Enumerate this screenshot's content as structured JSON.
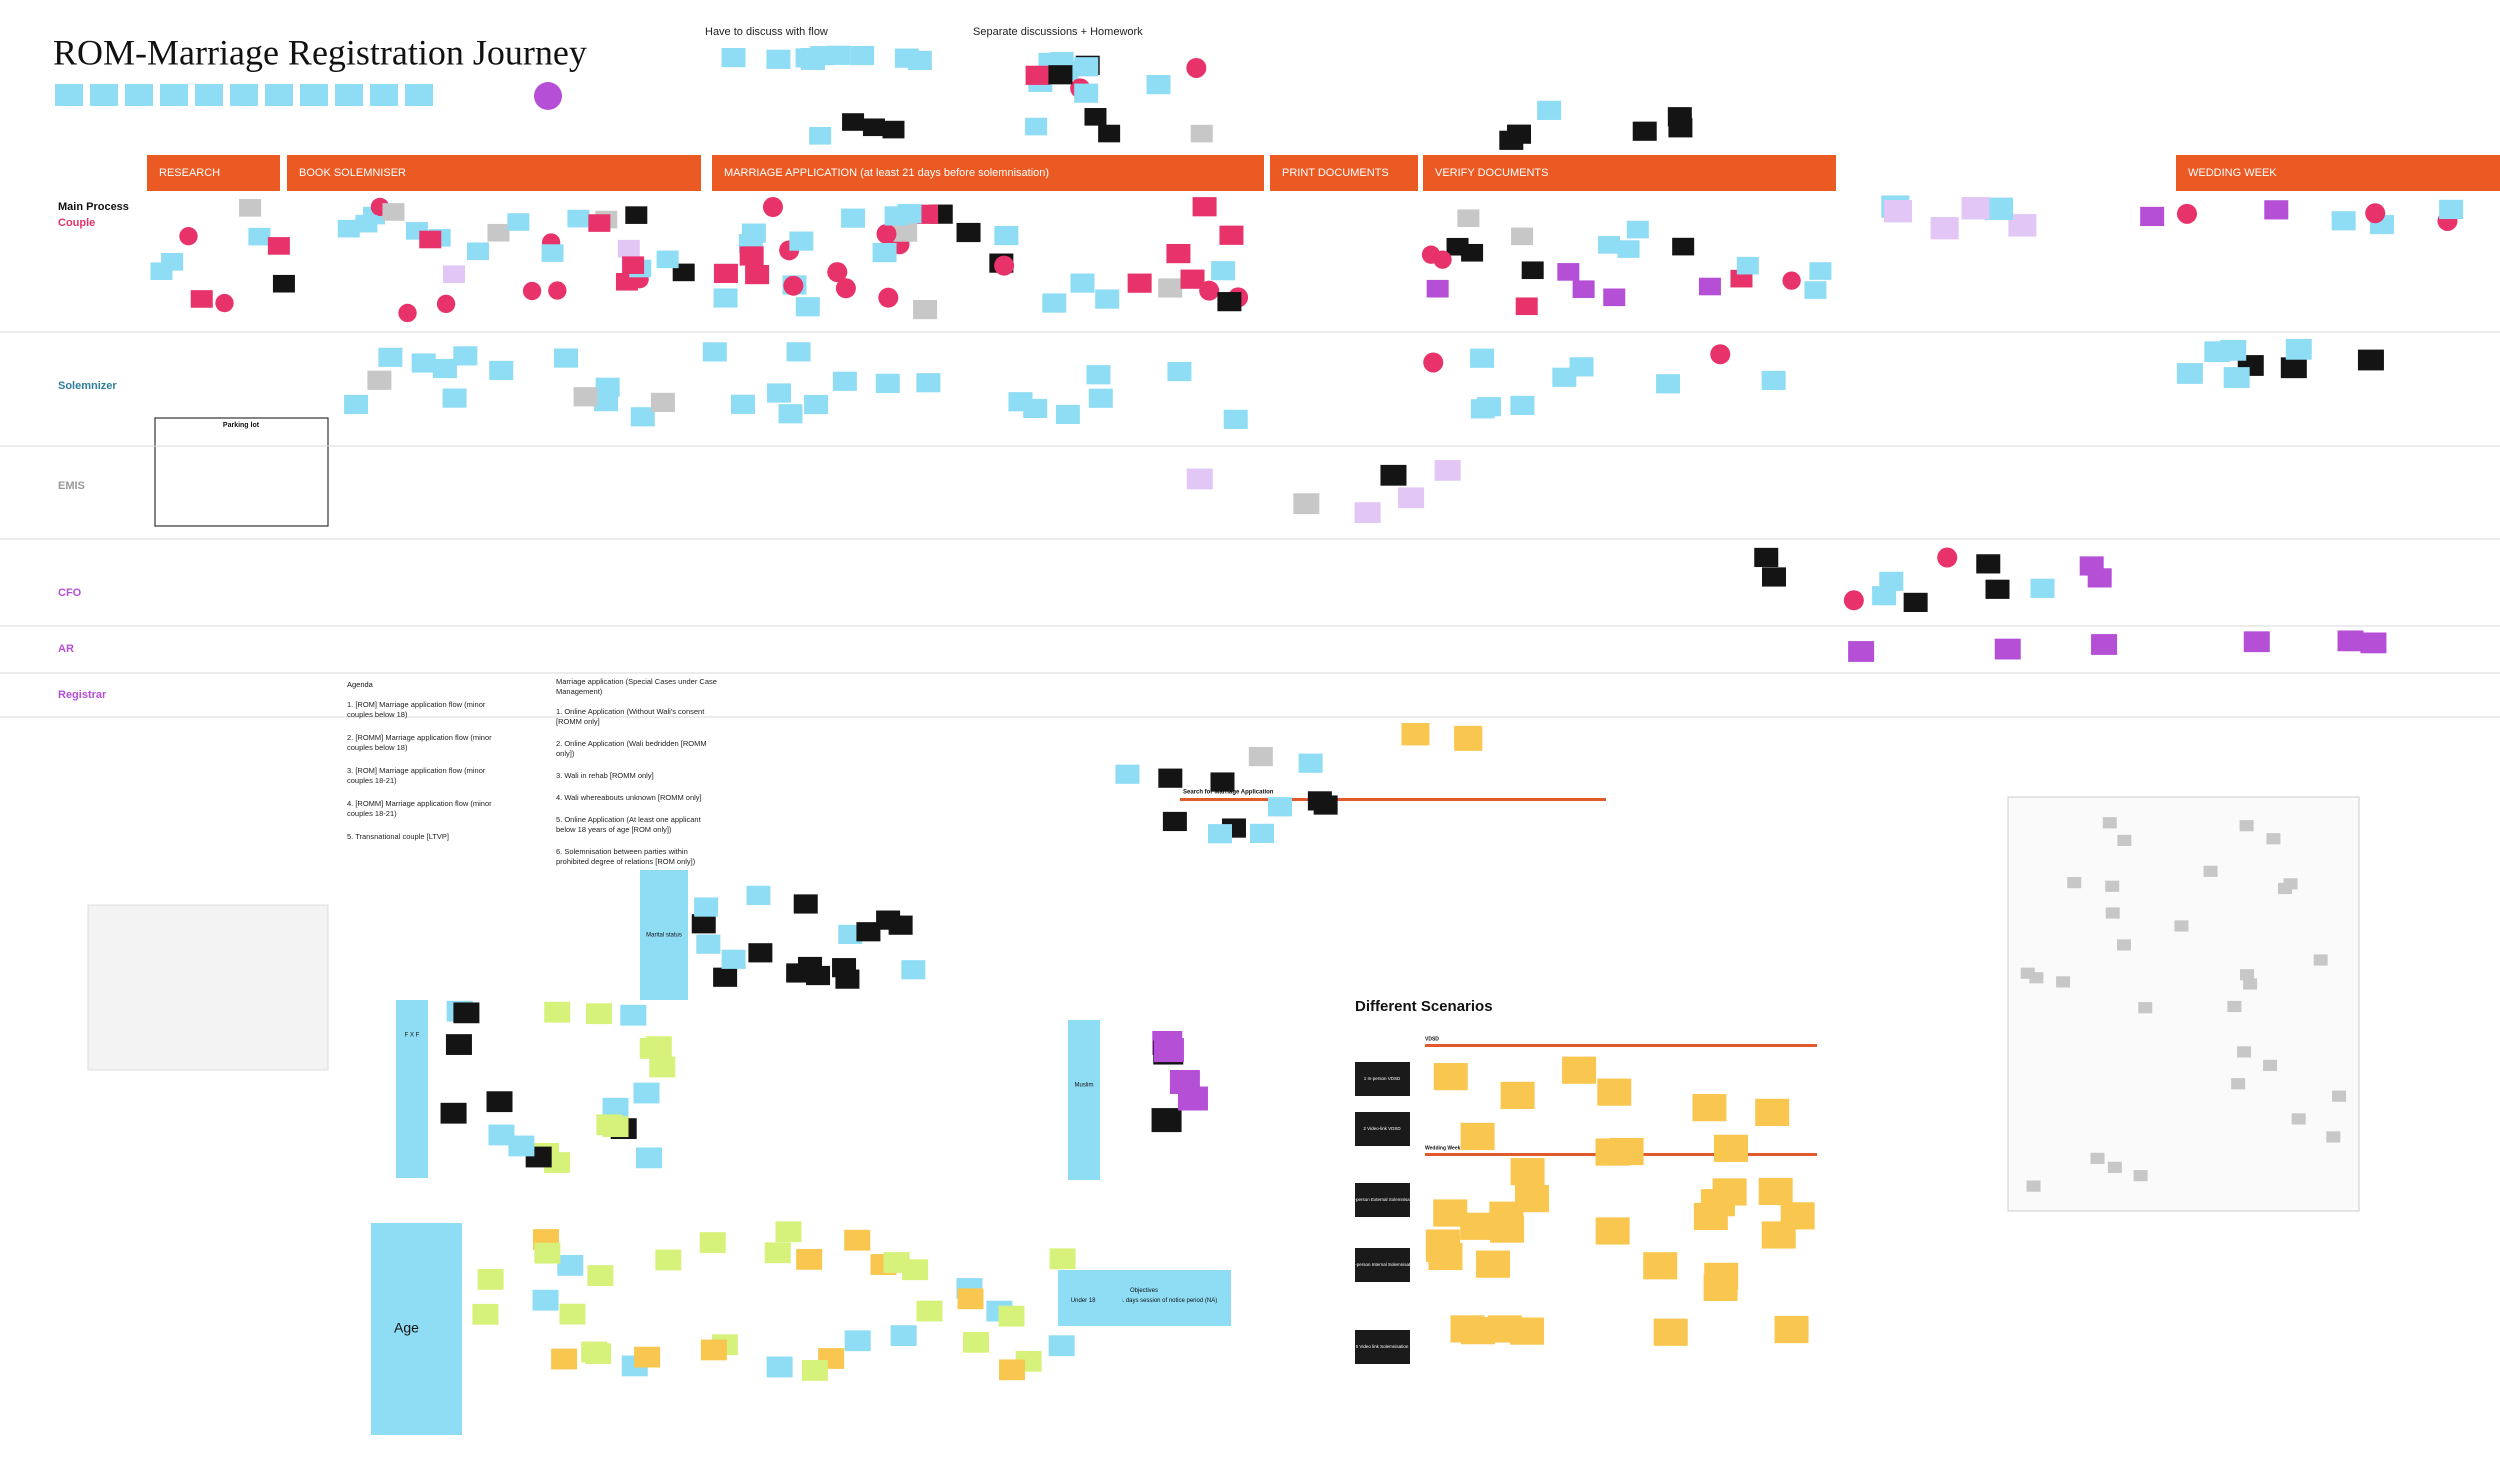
{
  "title": "ROM-Marriage Registration  Journey",
  "top_headings": [
    "Have to discuss with flow",
    "Separate discussions + Homework"
  ],
  "phases": [
    "RESEARCH",
    "BOOK SOLEMNISER",
    "MARRIAGE APPLICATION (at least 21 days before solemnisation)",
    "PRINT DOCUMENTS",
    "VERIFY DOCUMENTS",
    "WEDDING WEEK"
  ],
  "lanes": [
    "Main Process",
    "Couple",
    "Solemnizer",
    "EMIS",
    "CFO",
    "AR",
    "Registrar"
  ],
  "parking_lot": "Parking lot",
  "agenda": {
    "title": "Agenda",
    "items": [
      "1. [ROM] Marriage application flow (minor couples below 18)",
      "2. [ROMM] Marriage application flow (minor couples below 18)",
      "3. [ROM] Marriage application flow (minor couples 18-21)",
      "4. [ROMM] Marriage application flow (minor couples 18-21)",
      "5. Transnational couple [LTVP]"
    ]
  },
  "special_cases": {
    "title": "Marriage application (Special Cases under Case Management)",
    "items": [
      "1. Online Application (Without Wali's consent [ROMM only]",
      "2. Online Application (Wali bedridden [ROMM only])",
      "3. Wali in rehab [ROMM only]",
      "4. Wali whereabouts unknown [ROMM only]",
      "5. Online Application (At least one applicant below 18 years of age [ROM only])",
      "6. Solemnisation between parties within prohibited degree of relations [ROM only])"
    ]
  },
  "search_heading": "Search for Marriage Application",
  "group_labels": [
    "Marital status",
    "F X F",
    "Muslim",
    "Age"
  ],
  "objectives": "Objectives\nUnder 18 / within 21 days session of notice period (NA)",
  "scenarios": {
    "title": "Different Scenarios",
    "sections": [
      "VDSD",
      "Wedding Week"
    ],
    "rows": [
      "1 In-person VDSD",
      "2 Video-link VDSD",
      "3 In-person External Solemnisation",
      "4 In-person Internal Solemnisation",
      "5 Video link Solemnisation"
    ]
  }
}
